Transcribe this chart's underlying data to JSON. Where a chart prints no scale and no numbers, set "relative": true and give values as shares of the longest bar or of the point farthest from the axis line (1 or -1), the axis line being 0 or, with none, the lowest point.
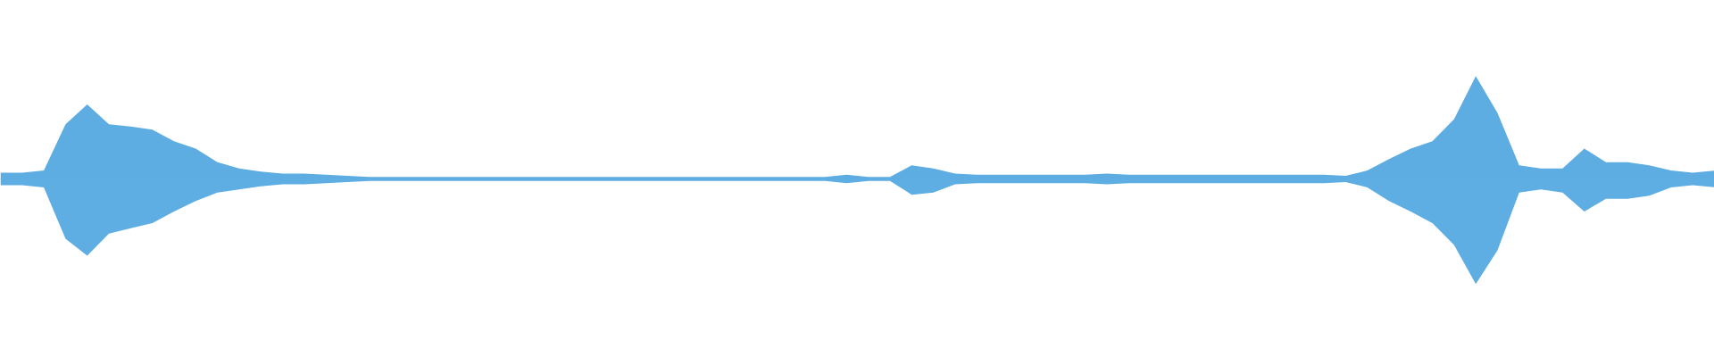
{
  "chart_data": {
    "type": "area",
    "relative": true,
    "ref_lines": [
      {
        "axis": "y",
        "value": 0,
        "color": "#5dade2"
      }
    ],
    "categories": [
      null,
      null,
      null,
      null,
      null,
      null,
      null,
      null,
      null,
      null,
      null,
      null,
      null,
      null,
      null,
      null,
      null,
      null,
      null,
      null,
      null,
      null,
      null,
      null,
      null,
      null,
      null,
      null,
      null,
      null,
      null,
      null,
      null,
      null,
      null,
      null,
      null,
      null,
      null,
      null,
      null,
      null,
      null,
      null,
      null,
      null,
      null,
      null,
      null,
      null,
      null,
      null,
      null,
      null,
      null,
      null,
      null,
      null,
      null,
      null,
      null,
      null,
      null,
      null,
      null,
      null,
      null,
      null,
      null,
      null,
      null,
      null,
      null,
      null,
      null,
      null,
      null,
      null,
      null,
      null
    ],
    "series": [
      {
        "color": "#5dade2",
        "values": [
          0.06,
          0.06,
          0.08,
          0.52,
          0.71,
          0.52,
          0.5,
          0.47,
          0.36,
          0.29,
          0.16,
          0.1,
          0.07,
          0.05,
          0.05,
          0.04,
          0.03,
          0.02,
          0.02,
          0.02,
          0.02,
          0.02,
          0.02,
          0.02,
          0.02,
          0.02,
          0.02,
          0.02,
          0.02,
          0.02,
          0.02,
          0.02,
          0.02,
          0.02,
          0.02,
          0.02,
          0.02,
          0.02,
          0.02,
          0.04,
          0.02,
          0.02,
          0.13,
          0.1,
          0.05,
          0.04,
          0.04,
          0.04,
          0.04,
          0.04,
          0.04,
          0.05,
          0.04,
          0.04,
          0.04,
          0.04,
          0.04,
          0.04,
          0.04,
          0.04,
          0.04,
          0.04,
          0.03,
          0.08,
          0.19,
          0.29,
          0.36,
          0.57,
          0.98,
          0.63,
          0.13,
          0.1,
          0.1,
          0.29,
          0.16,
          0.16,
          0.13,
          0.08,
          0.06,
          0.08
        ]
      },
      {
        "color": "#5eaee3",
        "values": [
          -0.06,
          -0.06,
          -0.08,
          -0.57,
          -0.73,
          -0.52,
          -0.47,
          -0.42,
          -0.31,
          -0.21,
          -0.13,
          -0.1,
          -0.07,
          -0.05,
          -0.05,
          -0.04,
          -0.03,
          -0.02,
          -0.02,
          -0.02,
          -0.02,
          -0.02,
          -0.02,
          -0.02,
          -0.02,
          -0.02,
          -0.02,
          -0.02,
          -0.02,
          -0.02,
          -0.02,
          -0.02,
          -0.02,
          -0.02,
          -0.02,
          -0.02,
          -0.02,
          -0.02,
          -0.02,
          -0.04,
          -0.02,
          -0.02,
          -0.15,
          -0.13,
          -0.05,
          -0.04,
          -0.04,
          -0.04,
          -0.04,
          -0.04,
          -0.04,
          -0.05,
          -0.04,
          -0.04,
          -0.04,
          -0.04,
          -0.04,
          -0.04,
          -0.04,
          -0.04,
          -0.04,
          -0.04,
          -0.03,
          -0.08,
          -0.21,
          -0.31,
          -0.42,
          -0.63,
          -1,
          -0.68,
          -0.13,
          -0.1,
          -0.13,
          -0.31,
          -0.19,
          -0.19,
          -0.16,
          -0.08,
          -0.06,
          -0.08
        ]
      }
    ]
  }
}
